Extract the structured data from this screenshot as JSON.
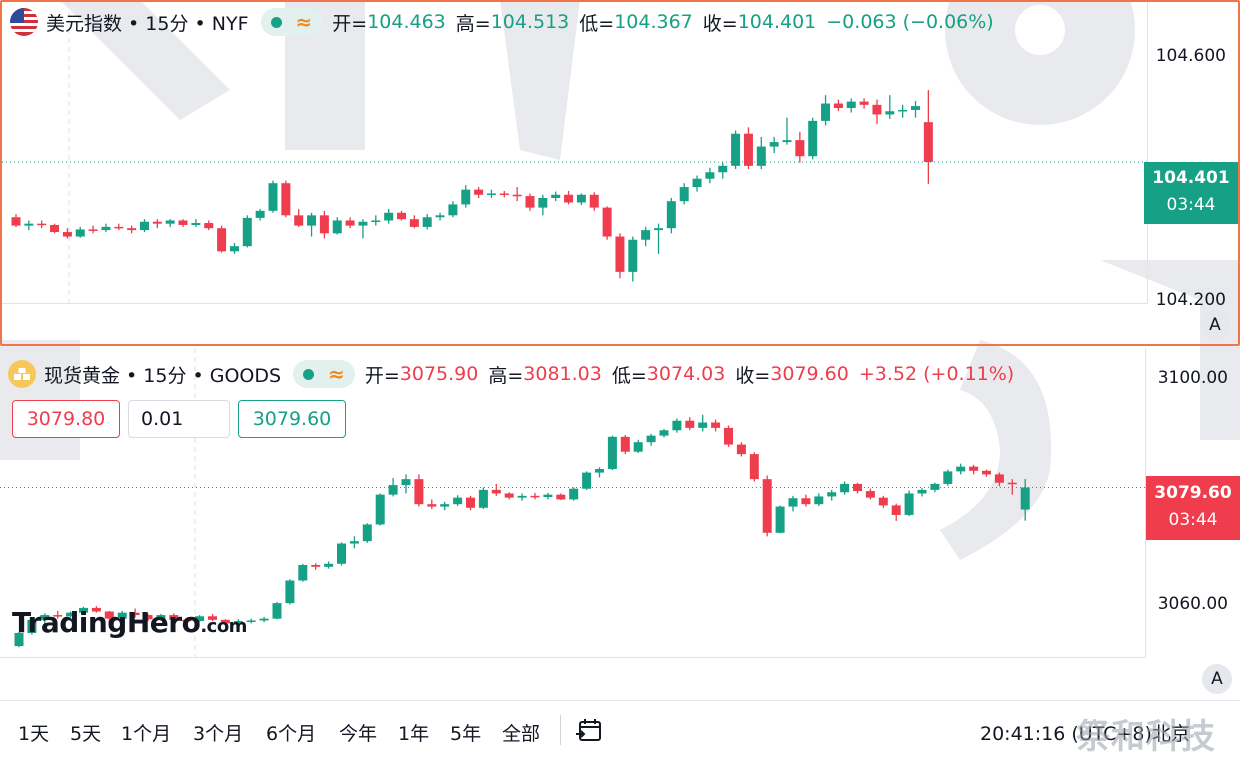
{
  "charts": [
    {
      "symbol": "美元指数 • 15分 • NYF",
      "ohlc": {
        "open_label": "开=",
        "open": "104.463",
        "high_label": "高=",
        "high": "104.513",
        "low_label": "低=",
        "low": "104.367",
        "close_label": "收=",
        "close": "104.401",
        "change": "−0.063 (−0.06%)"
      },
      "axis_labels": [
        "104.600",
        "104.200"
      ],
      "last_price": "104.401",
      "countdown": "03:44",
      "auto_scale_label": "A",
      "colors": {
        "up": "#16a085",
        "down": "#ef3d4e",
        "tag": "#16a085"
      }
    },
    {
      "symbol": "现货黄金 • 15分 • GOODS",
      "ohlc": {
        "open_label": "开=",
        "open": "3075.90",
        "high_label": "高=",
        "high": "3081.03",
        "low_label": "低=",
        "low": "3074.03",
        "close_label": "收=",
        "close": "3079.60",
        "change": "+3.52 (+0.11%)"
      },
      "order": {
        "sell_price": "3079.80",
        "quantity": "0.01",
        "buy_price": "3079.60"
      },
      "axis_labels": [
        "3100.00",
        "3060.00"
      ],
      "last_price": "3079.60",
      "countdown": "03:44",
      "auto_scale_label": "A",
      "brand_main": "TradingHero",
      "brand_suffix": ".com",
      "colors": {
        "up": "#16a085",
        "down": "#ef3d4e",
        "tag": "#ef3d4e"
      }
    }
  ],
  "timeframes": [
    "1天",
    "5天",
    "1个月",
    "3个月",
    "6个月",
    "今年",
    "1年",
    "5年",
    "全部"
  ],
  "clock": "20:41:16 (UTC+8)北京",
  "corner_watermark": "祭和科技",
  "chart_data": [
    {
      "type": "candlestick",
      "title": "美元指数 • 15分 • NYF",
      "y_ticks": [
        104.6,
        104.2
      ],
      "ylim": [
        104.18,
        104.65
      ],
      "candles": [
        [
          104.315,
          104.32,
          104.3,
          104.302
        ],
        [
          104.302,
          104.31,
          104.295,
          104.305
        ],
        [
          104.305,
          104.31,
          104.298,
          104.303
        ],
        [
          104.303,
          104.305,
          104.29,
          104.292
        ],
        [
          104.292,
          104.298,
          104.282,
          104.285
        ],
        [
          104.285,
          104.3,
          104.283,
          104.296
        ],
        [
          104.296,
          104.302,
          104.29,
          104.295
        ],
        [
          104.295,
          104.305,
          104.292,
          104.3
        ],
        [
          104.3,
          104.305,
          104.295,
          104.298
        ],
        [
          104.298,
          104.302,
          104.29,
          104.295
        ],
        [
          104.295,
          104.312,
          104.292,
          104.308
        ],
        [
          104.308,
          104.312,
          104.298,
          104.305
        ],
        [
          104.305,
          104.312,
          104.3,
          104.31
        ],
        [
          104.31,
          104.312,
          104.3,
          104.303
        ],
        [
          104.303,
          104.312,
          104.3,
          104.306
        ],
        [
          104.306,
          104.31,
          104.295,
          104.298
        ],
        [
          104.298,
          104.302,
          104.26,
          104.262
        ],
        [
          104.262,
          104.275,
          104.258,
          104.27
        ],
        [
          104.27,
          104.318,
          104.268,
          104.314
        ],
        [
          104.314,
          104.328,
          104.31,
          104.325
        ],
        [
          104.325,
          104.372,
          104.322,
          104.368
        ],
        [
          104.368,
          104.372,
          104.315,
          104.318
        ],
        [
          104.318,
          104.328,
          104.3,
          104.302
        ],
        [
          104.302,
          104.322,
          104.285,
          104.318
        ],
        [
          104.318,
          104.325,
          104.282,
          104.29
        ],
        [
          104.29,
          104.315,
          104.288,
          104.31
        ],
        [
          104.31,
          104.315,
          104.298,
          104.302
        ],
        [
          104.302,
          104.312,
          104.282,
          104.308
        ],
        [
          104.308,
          104.318,
          104.302,
          104.31
        ],
        [
          104.31,
          104.328,
          104.305,
          104.322
        ],
        [
          104.322,
          104.325,
          104.31,
          104.312
        ],
        [
          104.312,
          104.318,
          104.298,
          104.3
        ],
        [
          104.3,
          104.32,
          104.296,
          104.315
        ],
        [
          104.315,
          104.322,
          104.31,
          104.318
        ],
        [
          104.318,
          104.34,
          104.315,
          104.335
        ],
        [
          104.335,
          104.365,
          104.33,
          104.358
        ],
        [
          104.358,
          104.362,
          104.345,
          104.35
        ],
        [
          104.35,
          104.358,
          104.345,
          104.352
        ],
        [
          104.352,
          104.356,
          104.346,
          104.35
        ],
        [
          104.35,
          104.362,
          104.34,
          104.348
        ],
        [
          104.348,
          104.352,
          104.325,
          104.33
        ],
        [
          104.33,
          104.35,
          104.318,
          104.345
        ],
        [
          104.345,
          104.355,
          104.34,
          104.35
        ],
        [
          104.35,
          104.356,
          104.335,
          104.338
        ],
        [
          104.338,
          104.352,
          104.334,
          104.35
        ],
        [
          104.35,
          104.354,
          104.325,
          104.33
        ],
        [
          104.33,
          104.332,
          104.28,
          104.285
        ],
        [
          104.285,
          104.29,
          104.22,
          104.23
        ],
        [
          104.23,
          104.285,
          104.215,
          104.28
        ],
        [
          104.28,
          104.3,
          104.27,
          104.295
        ],
        [
          104.295,
          104.305,
          104.258,
          104.298
        ],
        [
          104.298,
          104.345,
          104.29,
          104.34
        ],
        [
          104.34,
          104.368,
          104.335,
          104.362
        ],
        [
          104.362,
          104.38,
          104.355,
          104.375
        ],
        [
          104.375,
          104.392,
          104.368,
          104.385
        ],
        [
          104.385,
          104.4,
          104.375,
          104.395
        ],
        [
          104.395,
          104.45,
          104.39,
          104.445
        ],
        [
          104.445,
          104.455,
          104.39,
          104.395
        ],
        [
          104.395,
          104.44,
          104.39,
          104.425
        ],
        [
          104.425,
          104.44,
          104.415,
          104.432
        ],
        [
          104.432,
          104.47,
          104.428,
          104.435
        ],
        [
          104.435,
          104.448,
          104.4,
          104.41
        ],
        [
          104.41,
          104.47,
          104.405,
          104.465
        ],
        [
          104.465,
          104.505,
          104.458,
          104.492
        ],
        [
          104.492,
          104.498,
          104.48,
          104.485
        ],
        [
          104.485,
          104.5,
          104.478,
          104.495
        ],
        [
          104.495,
          104.5,
          104.484,
          104.49
        ],
        [
          104.49,
          104.498,
          104.46,
          104.475
        ],
        [
          104.475,
          104.505,
          104.468,
          104.48
        ],
        [
          104.48,
          104.49,
          104.47,
          104.482
        ],
        [
          104.482,
          104.496,
          104.47,
          104.488
        ],
        [
          104.463,
          104.513,
          104.367,
          104.401
        ]
      ]
    },
    {
      "type": "candlestick",
      "title": "现货黄金 • 15分 • GOODS",
      "y_ticks": [
        3100,
        3060
      ],
      "ylim": [
        3051,
        3103
      ],
      "candles": [
        [
          3053.0,
          3055.4,
          3052.8,
          3055.2
        ],
        [
          3055.2,
          3057.6,
          3054.9,
          3057.4
        ],
        [
          3057.4,
          3058.5,
          3056.6,
          3058.2
        ],
        [
          3058.2,
          3058.9,
          3057.6,
          3058.0
        ],
        [
          3058.0,
          3058.8,
          3057.8,
          3058.6
        ],
        [
          3058.6,
          3059.6,
          3058.2,
          3059.4
        ],
        [
          3059.4,
          3059.7,
          3058.6,
          3058.8
        ],
        [
          3058.8,
          3058.9,
          3056.8,
          3057.6
        ],
        [
          3057.6,
          3058.9,
          3057.4,
          3058.6
        ],
        [
          3058.6,
          3059.3,
          3057.8,
          3058.2
        ],
        [
          3058.2,
          3058.4,
          3057.2,
          3057.5
        ],
        [
          3057.5,
          3058.4,
          3057.3,
          3058.2
        ],
        [
          3058.2,
          3058.5,
          3057.2,
          3057.4
        ],
        [
          3057.4,
          3057.7,
          3057.0,
          3057.2
        ],
        [
          3057.2,
          3058.2,
          3057.0,
          3058.0
        ],
        [
          3058.0,
          3058.4,
          3057.2,
          3057.4
        ],
        [
          3057.4,
          3057.5,
          3056.6,
          3056.8
        ],
        [
          3056.8,
          3057.5,
          3056.4,
          3057.2
        ],
        [
          3057.2,
          3057.6,
          3056.8,
          3057.3
        ],
        [
          3057.3,
          3057.9,
          3057.0,
          3057.6
        ],
        [
          3057.6,
          3060.4,
          3057.5,
          3060.2
        ],
        [
          3060.2,
          3064.2,
          3060.0,
          3064.0
        ],
        [
          3064.0,
          3066.8,
          3063.8,
          3066.6
        ],
        [
          3066.6,
          3066.9,
          3065.8,
          3066.3
        ],
        [
          3066.3,
          3067.2,
          3066.0,
          3066.8
        ],
        [
          3066.8,
          3070.4,
          3066.5,
          3070.2
        ],
        [
          3070.2,
          3071.4,
          3069.4,
          3070.6
        ],
        [
          3070.6,
          3073.6,
          3070.3,
          3073.4
        ],
        [
          3073.4,
          3078.6,
          3073.2,
          3078.4
        ],
        [
          3078.4,
          3081.2,
          3078.1,
          3080.0
        ],
        [
          3080.0,
          3081.8,
          3078.6,
          3081.0
        ],
        [
          3081.0,
          3081.8,
          3076.4,
          3076.8
        ],
        [
          3076.8,
          3077.6,
          3076.0,
          3076.4
        ],
        [
          3076.4,
          3077.2,
          3075.8,
          3076.8
        ],
        [
          3076.8,
          3078.3,
          3076.5,
          3077.9
        ],
        [
          3077.9,
          3078.2,
          3075.8,
          3076.2
        ],
        [
          3076.2,
          3079.6,
          3076.0,
          3079.2
        ],
        [
          3079.2,
          3080.2,
          3078.2,
          3078.6
        ],
        [
          3078.6,
          3078.8,
          3077.6,
          3077.9
        ],
        [
          3077.9,
          3078.6,
          3077.4,
          3078.2
        ],
        [
          3078.2,
          3078.7,
          3077.6,
          3078.0
        ],
        [
          3078.0,
          3078.7,
          3077.6,
          3078.4
        ],
        [
          3078.4,
          3078.6,
          3077.5,
          3077.6
        ],
        [
          3077.6,
          3079.6,
          3077.4,
          3079.4
        ],
        [
          3079.4,
          3082.3,
          3079.2,
          3082.1
        ],
        [
          3082.1,
          3083.0,
          3081.3,
          3082.7
        ],
        [
          3082.7,
          3088.3,
          3082.5,
          3088.1
        ],
        [
          3088.1,
          3088.4,
          3085.2,
          3085.6
        ],
        [
          3085.6,
          3087.6,
          3085.4,
          3087.2
        ],
        [
          3087.2,
          3088.6,
          3086.6,
          3088.3
        ],
        [
          3088.3,
          3089.4,
          3088.0,
          3089.2
        ],
        [
          3089.2,
          3091.2,
          3088.8,
          3090.8
        ],
        [
          3090.8,
          3091.4,
          3089.2,
          3089.6
        ],
        [
          3089.6,
          3091.8,
          3089.0,
          3090.5
        ],
        [
          3090.5,
          3091.0,
          3089.0,
          3089.6
        ],
        [
          3089.6,
          3090.0,
          3086.4,
          3086.8
        ],
        [
          3086.8,
          3087.2,
          3084.8,
          3085.2
        ],
        [
          3085.2,
          3085.5,
          3080.6,
          3081.0
        ],
        [
          3081.0,
          3081.6,
          3071.4,
          3072.0
        ],
        [
          3072.0,
          3076.6,
          3071.9,
          3076.4
        ],
        [
          3076.4,
          3078.2,
          3075.6,
          3077.8
        ],
        [
          3077.8,
          3078.4,
          3076.4,
          3076.8
        ],
        [
          3076.8,
          3078.6,
          3076.5,
          3078.1
        ],
        [
          3078.1,
          3079.2,
          3077.4,
          3078.8
        ],
        [
          3078.8,
          3080.6,
          3078.4,
          3080.2
        ],
        [
          3080.2,
          3080.4,
          3078.6,
          3079.0
        ],
        [
          3079.0,
          3079.4,
          3077.6,
          3077.9
        ],
        [
          3077.9,
          3078.2,
          3076.2,
          3076.6
        ],
        [
          3076.6,
          3076.9,
          3074.0,
          3075.0
        ],
        [
          3075.0,
          3079.1,
          3074.8,
          3078.6
        ],
        [
          3078.6,
          3079.5,
          3078.1,
          3079.2
        ],
        [
          3079.2,
          3080.4,
          3078.8,
          3080.2
        ],
        [
          3080.2,
          3082.6,
          3079.9,
          3082.3
        ],
        [
          3082.3,
          3083.6,
          3081.8,
          3083.1
        ],
        [
          3083.1,
          3083.4,
          3081.8,
          3082.4
        ],
        [
          3082.4,
          3082.6,
          3081.4,
          3081.8
        ],
        [
          3081.8,
          3082.1,
          3079.8,
          3080.4
        ],
        [
          3080.4,
          3081.0,
          3078.4,
          3080.2
        ],
        [
          3075.9,
          3081.03,
          3074.03,
          3079.6
        ]
      ]
    }
  ]
}
